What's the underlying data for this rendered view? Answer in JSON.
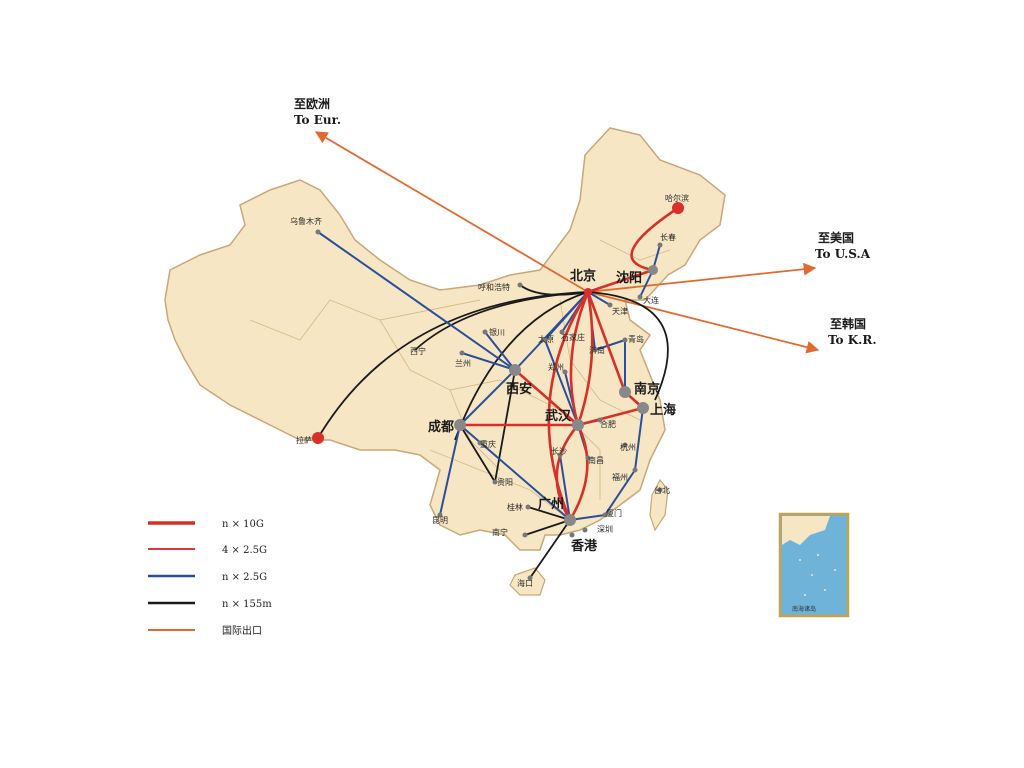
{
  "international": [
    {
      "id": "eur",
      "label_cn": "至欧洲",
      "label_en": "To Eur."
    },
    {
      "id": "usa",
      "label_cn": "至美国",
      "label_en": "To U.S.A"
    },
    {
      "id": "kr",
      "label_cn": "至韩国",
      "label_en": "To K.R."
    }
  ],
  "cities": {
    "beijing": "北京",
    "shenyang": "沈阳",
    "harbin": "哈尔滨",
    "changchun": "长春",
    "dalian": "大连",
    "tianjin": "天津",
    "hohhot": "呼和浩特",
    "urumqi": "乌鲁木齐",
    "yinchuan": "银川",
    "xining": "西宁",
    "lanzhou": "兰州",
    "xian": "西安",
    "taiyuan": "太原",
    "shijiazhuang": "石家庄",
    "jinan": "济南",
    "qingdao": "青岛",
    "zhengzhou": "郑州",
    "nanjing": "南京",
    "shanghai": "上海",
    "hefei": "合肥",
    "wuhan": "武汉",
    "chengdu": "成都",
    "chongqing": "重庆",
    "lhasa": "拉萨",
    "changsha": "长沙",
    "nanchang": "南昌",
    "hangzhou": "杭州",
    "fuzhou": "福州",
    "xiamen": "厦门",
    "guiyang": "贵阳",
    "kunming": "昆明",
    "guilin": "桂林",
    "guangzhou": "广州",
    "shenzhen": "深圳",
    "hongkong": "香港",
    "nanning": "南宁",
    "haikou": "海口",
    "taibei": "台北"
  },
  "legend": [
    {
      "id": "n10g",
      "label": "n × 10G",
      "color": "#d7302a"
    },
    {
      "id": "g25x4",
      "label": "4 × 2.5G",
      "color": "#e0353a"
    },
    {
      "id": "n25g",
      "label": "n × 2.5G",
      "color": "#2a4f9a"
    },
    {
      "id": "n155m",
      "label": "n × 155m",
      "color": "#1a1a1a"
    },
    {
      "id": "intl",
      "label": "国际出口",
      "color": "#e06a2e"
    }
  ],
  "inset": {
    "label": "南海诸岛"
  },
  "colors": {
    "land": "#f6e6c4",
    "border": "#c9a77a",
    "sea": "#6fb3d9",
    "inset_frame": "#c8a24a"
  }
}
